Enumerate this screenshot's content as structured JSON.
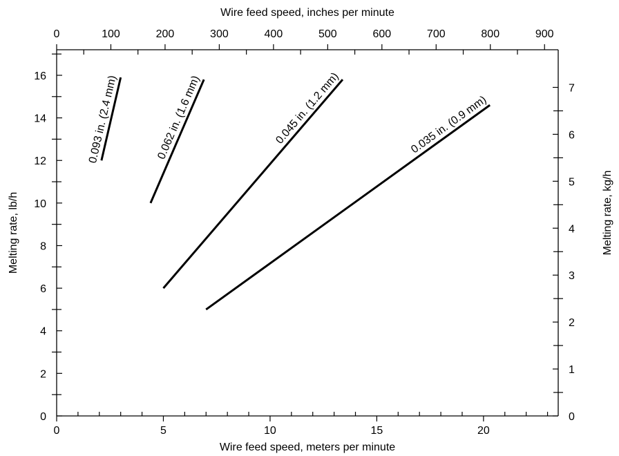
{
  "chart_data": {
    "type": "line",
    "title": "",
    "x_top": {
      "label": "Wire feed speed, inches per minute",
      "ticks": [
        0,
        100,
        200,
        300,
        400,
        500,
        600,
        700,
        800,
        900
      ],
      "tick_labels": [
        "0",
        "100",
        "200",
        "300",
        "400",
        "500",
        "600",
        "700",
        "800",
        "900"
      ]
    },
    "x_bottom": {
      "label": "Wire feed speed, meters per minute",
      "range": [
        0,
        23.5
      ],
      "ticks": [
        0,
        5,
        10,
        15,
        20
      ],
      "tick_labels": [
        "0",
        "5",
        "10",
        "15",
        "20"
      ]
    },
    "y_left": {
      "label": "Melting rate, lb/h",
      "range": [
        0,
        17.2
      ],
      "ticks": [
        0,
        2,
        4,
        6,
        8,
        10,
        12,
        14,
        16
      ],
      "tick_labels": [
        "0",
        "2",
        "4",
        "6",
        "8",
        "10",
        "12",
        "14",
        "16"
      ]
    },
    "y_right": {
      "label": "Melting rate, kg/h",
      "ticks": [
        0,
        1,
        2,
        3,
        4,
        5,
        6,
        7
      ],
      "tick_labels": [
        "0",
        "1",
        "2",
        "3",
        "4",
        "5",
        "6",
        "7"
      ]
    },
    "grid": false,
    "series": [
      {
        "name": "0.093 in. (2.4 mm)",
        "x": [
          2.1,
          3.0
        ],
        "y": [
          12,
          15.9
        ]
      },
      {
        "name": "0.062 in. (1.6 mm)",
        "x": [
          4.4,
          6.9
        ],
        "y": [
          10,
          15.8
        ]
      },
      {
        "name": "0.045 in. (1.2 mm)",
        "x": [
          5.0,
          13.4
        ],
        "y": [
          6,
          15.8
        ]
      },
      {
        "name": "0.035 in. (0.9 mm)",
        "x": [
          7.0,
          20.3
        ],
        "y": [
          5,
          14.6
        ]
      }
    ]
  }
}
